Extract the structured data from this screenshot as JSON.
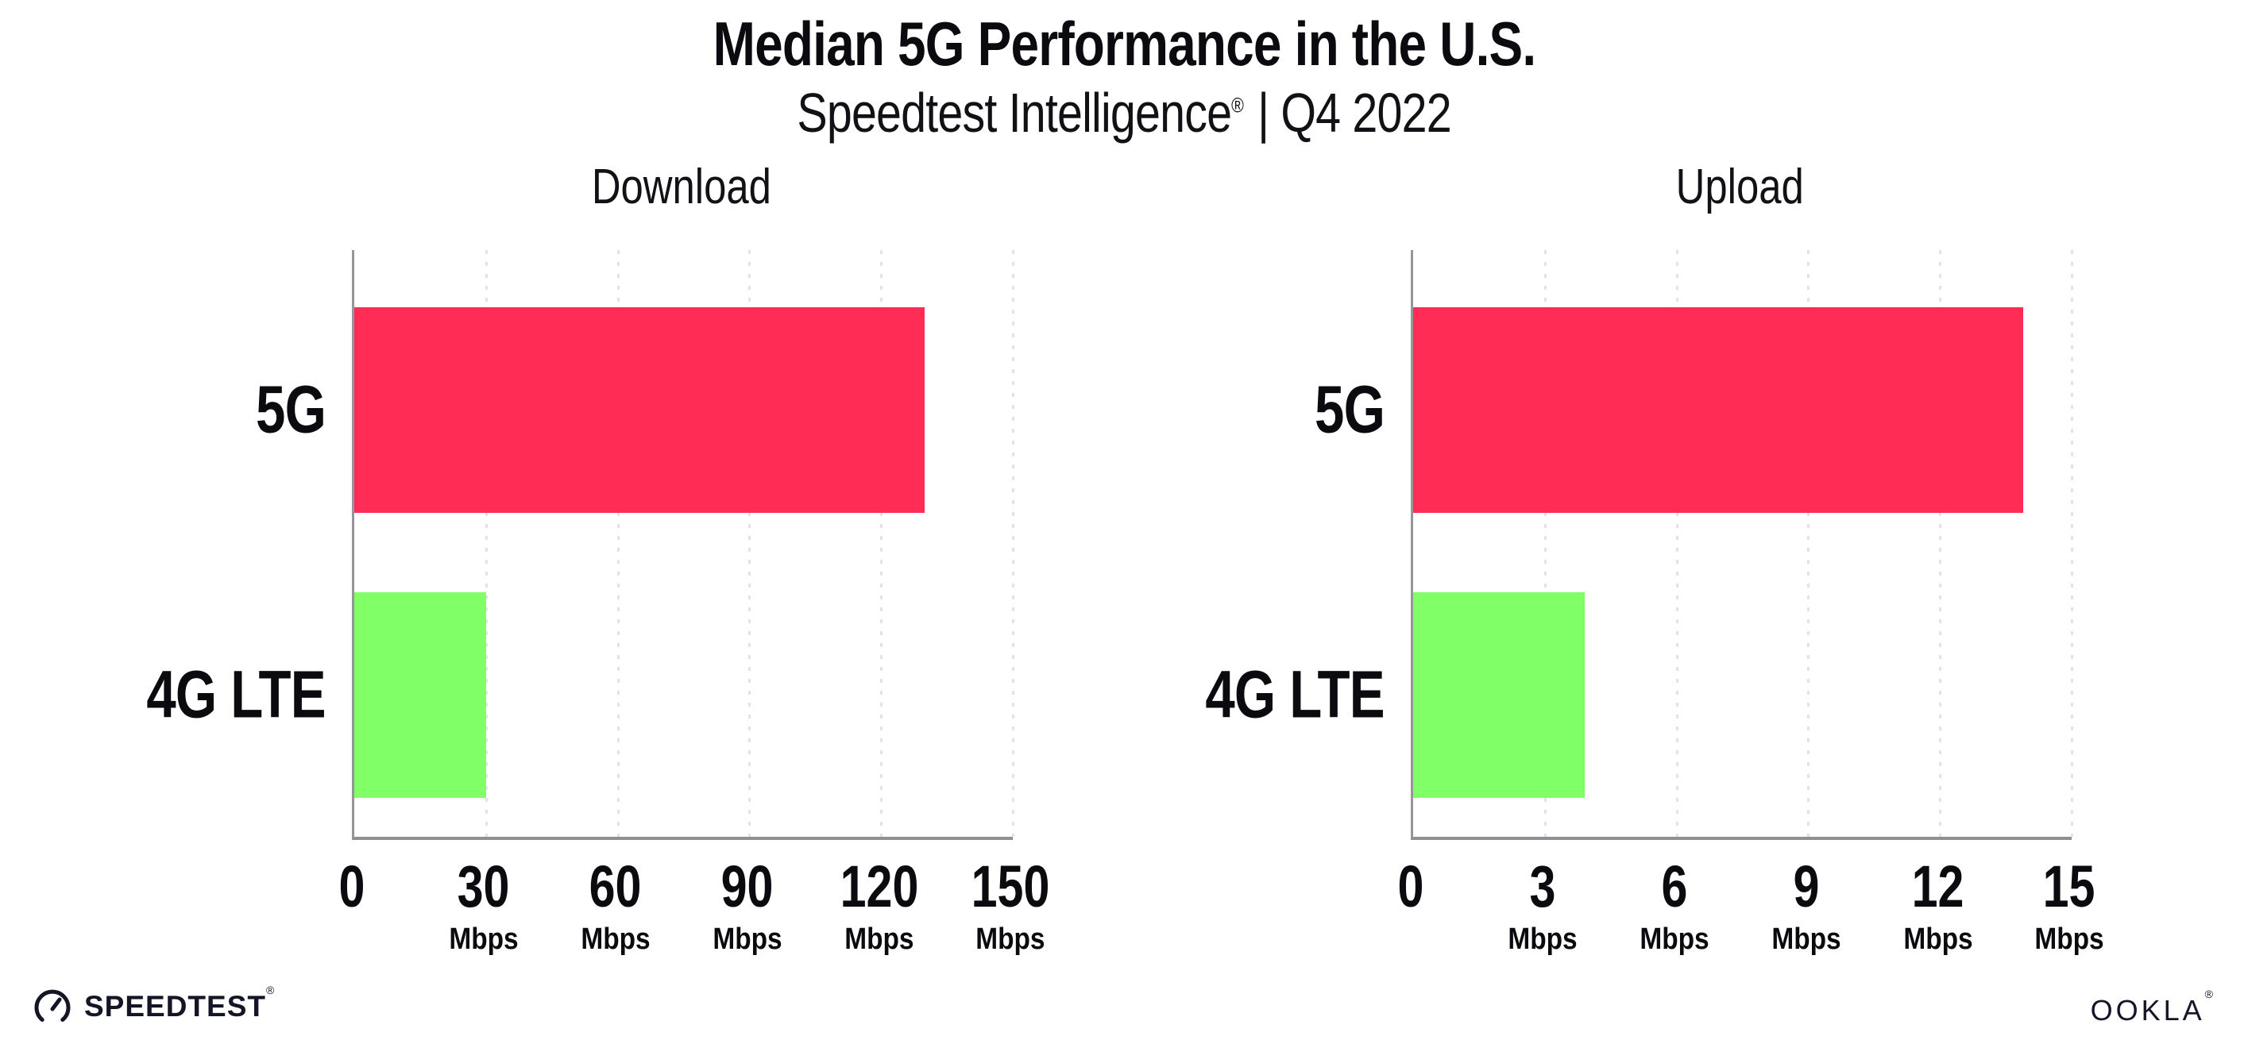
{
  "title": "Median 5G Performance in the U.S.",
  "subtitle": {
    "brand": "Speedtest Intelligence",
    "reg_mark": "®",
    "tail": "| Q4 2022"
  },
  "colors": {
    "bar_5g": "#FF2D55",
    "bar_4g_lte": "#80FF66",
    "gridline": "#E2E2EE",
    "axis": "#95959A",
    "text": "#0B0B0F"
  },
  "chart_data": [
    {
      "type": "bar",
      "orientation": "horizontal",
      "title": "Download",
      "categories": [
        "5G",
        "4G LTE"
      ],
      "values": [
        130,
        30
      ],
      "unit": "Mbps",
      "xlim": [
        0,
        150
      ],
      "xticks": [
        0,
        30,
        60,
        90,
        120,
        150
      ],
      "grid": "vertical-dotted",
      "series_colors": [
        "#FF2D55",
        "#80FF66"
      ]
    },
    {
      "type": "bar",
      "orientation": "horizontal",
      "title": "Upload",
      "categories": [
        "5G",
        "4G LTE"
      ],
      "values": [
        13.9,
        3.9
      ],
      "unit": "Mbps",
      "xlim": [
        0,
        15
      ],
      "xticks": [
        0,
        3,
        6,
        9,
        12,
        15
      ],
      "grid": "vertical-dotted",
      "series_colors": [
        "#FF2D55",
        "#80FF66"
      ]
    }
  ],
  "panels": [
    {
      "heading": "Download",
      "row_labels": [
        "5G",
        "4G LTE"
      ],
      "ticks": [
        {
          "num": "0",
          "unit": ""
        },
        {
          "num": "30",
          "unit": "Mbps"
        },
        {
          "num": "60",
          "unit": "Mbps"
        },
        {
          "num": "90",
          "unit": "Mbps"
        },
        {
          "num": "120",
          "unit": "Mbps"
        },
        {
          "num": "150",
          "unit": "Mbps"
        }
      ]
    },
    {
      "heading": "Upload",
      "row_labels": [
        "5G",
        "4G LTE"
      ],
      "ticks": [
        {
          "num": "0",
          "unit": ""
        },
        {
          "num": "3",
          "unit": "Mbps"
        },
        {
          "num": "6",
          "unit": "Mbps"
        },
        {
          "num": "9",
          "unit": "Mbps"
        },
        {
          "num": "12",
          "unit": "Mbps"
        },
        {
          "num": "15",
          "unit": "Mbps"
        }
      ]
    }
  ],
  "footer": {
    "speedtest_label": "SPEEDTEST",
    "speedtest_mark": "®",
    "ookla_label": "OOKLA",
    "ookla_mark": "®"
  }
}
